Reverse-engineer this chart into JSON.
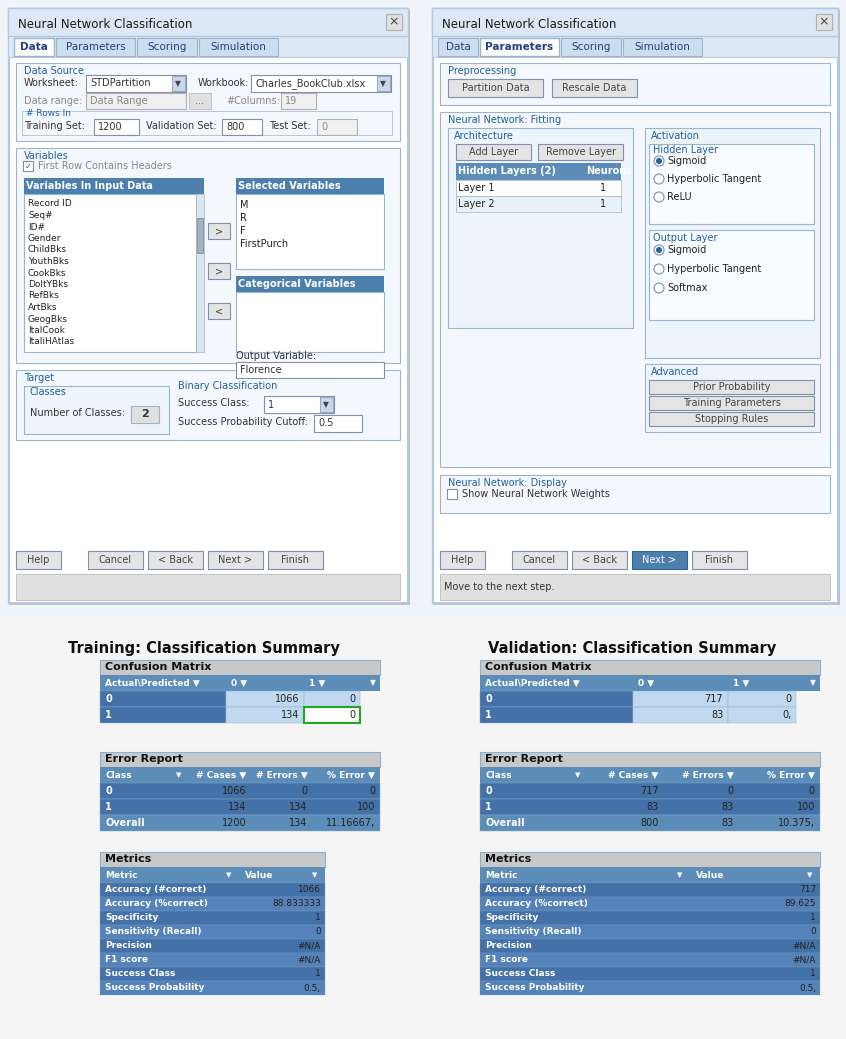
{
  "title1": "Neural Network Classification",
  "title2": "Neural Network Classification",
  "tabs": [
    "Data",
    "Parameters",
    "Scoring",
    "Simulation"
  ],
  "active_tab1": 0,
  "active_tab2": 1,
  "bg": "#f0f4f8",
  "win_title_bg": "#dce8f5",
  "win_body_bg": "#f4f8fd",
  "tab_active_bg": "#ffffff",
  "tab_inactive_bg": "#cdddf0",
  "tab_border": "#9ab5cc",
  "section_border": "#9ab5cc",
  "section_bg": "#f4f8fd",
  "subbox_bg": "#edf4fb",
  "input_bg": "#ffffff",
  "input_bg_gray": "#e8e8e8",
  "list_header_bg": "#4d7fac",
  "list_header_fg": "#ffffff",
  "btn_bg": "#e4e4e4",
  "btn_border": "#a0a0a0",
  "btn_active_bg": "#4d7fac",
  "btn_active_fg": "#ffffff",
  "radio_fill": "#2060a0",
  "text_label": "#333333",
  "text_blue_label": "#2060a0",
  "text_gray": "#888888",
  "text_white": "#ffffff",
  "table_header_bg": "#5b8db8",
  "table_row0_bg": "#4472a8",
  "table_row1_bg": "#6090be",
  "table_overall_bg": "#7aaad0",
  "table_cell_white": "#ffffff",
  "table_cell_light": "#c8ddf0",
  "table_border": "#7aaad0",
  "table_gray_header": "#c8c8c8",
  "green_border": "#20aa20",
  "summary_title_fs": 10,
  "dialog_fs": 7,
  "tab_fs": 7.5,
  "small_fs": 6.5,
  "table_header_fs": 7,
  "table_cell_fs": 7
}
